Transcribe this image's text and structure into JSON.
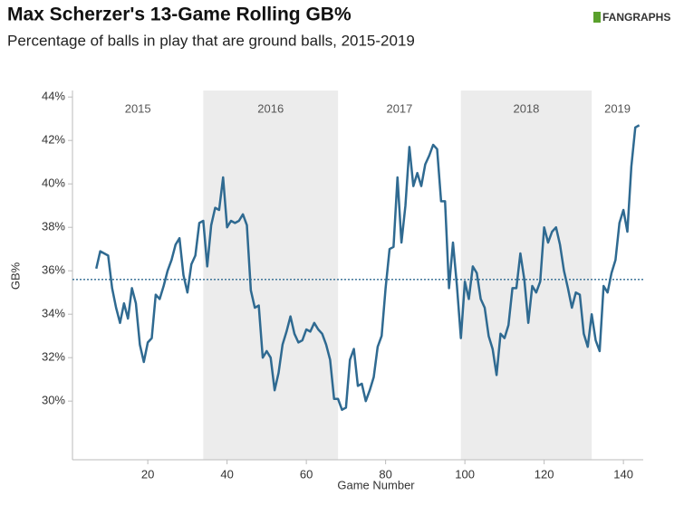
{
  "chart_data": {
    "type": "line",
    "title": "Max Scherzer's 13-Game Rolling GB%",
    "subtitle": "Percentage of balls in play that are ground balls, 2015-2019",
    "logo": "FANGRAPHS",
    "x_label": "Game Number",
    "y_label": "GB%",
    "x": [
      7,
      8,
      9,
      10,
      11,
      12,
      13,
      14,
      15,
      16,
      17,
      18,
      19,
      20,
      21,
      22,
      23,
      24,
      25,
      26,
      27,
      28,
      29,
      30,
      31,
      32,
      33,
      34,
      35,
      36,
      37,
      38,
      39,
      40,
      41,
      42,
      43,
      44,
      45,
      46,
      47,
      48,
      49,
      50,
      51,
      52,
      53,
      54,
      55,
      56,
      57,
      58,
      59,
      60,
      61,
      62,
      63,
      64,
      65,
      66,
      67,
      68,
      69,
      70,
      71,
      72,
      73,
      74,
      75,
      76,
      77,
      78,
      79,
      80,
      81,
      82,
      83,
      84,
      85,
      86,
      87,
      88,
      89,
      90,
      91,
      92,
      93,
      94,
      95,
      96,
      97,
      98,
      99,
      100,
      101,
      102,
      103,
      104,
      105,
      106,
      107,
      108,
      109,
      110,
      111,
      112,
      113,
      114,
      115,
      116,
      117,
      118,
      119,
      120,
      121,
      122,
      123,
      124,
      125,
      126,
      127,
      128,
      129,
      130,
      131,
      132,
      133,
      134,
      135,
      136,
      137,
      138,
      139,
      140,
      141,
      142,
      143,
      144
    ],
    "series": [
      {
        "name": "GB%",
        "color": "#2f6a91",
        "values": [
          36.1,
          36.9,
          36.8,
          36.7,
          35.2,
          34.3,
          33.6,
          34.5,
          33.8,
          35.2,
          34.5,
          32.6,
          31.8,
          32.7,
          32.9,
          34.9,
          34.7,
          35.3,
          36.0,
          36.5,
          37.2,
          37.5,
          35.8,
          35.0,
          36.3,
          36.7,
          38.2,
          38.3,
          36.2,
          38.1,
          38.9,
          38.8,
          40.3,
          38.0,
          38.3,
          38.2,
          38.3,
          38.6,
          38.1,
          35.1,
          34.3,
          34.4,
          32.0,
          32.3,
          32.0,
          30.5,
          31.3,
          32.6,
          33.2,
          33.9,
          33.1,
          32.7,
          32.8,
          33.3,
          33.2,
          33.6,
          33.3,
          33.1,
          32.6,
          31.9,
          30.1,
          30.1,
          29.6,
          29.7,
          31.9,
          32.4,
          30.7,
          30.8,
          30.0,
          30.5,
          31.1,
          32.5,
          33.0,
          35.2,
          37.0,
          37.1,
          40.3,
          37.3,
          39.0,
          41.7,
          39.9,
          40.5,
          39.9,
          40.9,
          41.3,
          41.8,
          41.6,
          39.2,
          39.2,
          35.2,
          37.3,
          35.3,
          32.9,
          35.5,
          34.7,
          36.2,
          35.9,
          34.7,
          34.3,
          33.0,
          32.4,
          31.2,
          33.1,
          32.9,
          33.5,
          35.2,
          35.2,
          36.8,
          35.6,
          33.6,
          35.3,
          35.0,
          35.5,
          38.0,
          37.3,
          37.8,
          38.0,
          37.2,
          36.0,
          35.2,
          34.3,
          35.0,
          34.9,
          33.1,
          32.5,
          34.0,
          32.8,
          32.3,
          35.3,
          35.0,
          35.9,
          36.5,
          38.2,
          38.8,
          37.8,
          40.8,
          42.6,
          42.7
        ]
      }
    ],
    "average": 35.6,
    "seasons": [
      {
        "label": "2015",
        "range": [
          1,
          34
        ],
        "shaded": false
      },
      {
        "label": "2016",
        "range": [
          34,
          68
        ],
        "shaded": true
      },
      {
        "label": "2017",
        "range": [
          68,
          99
        ],
        "shaded": false
      },
      {
        "label": "2018",
        "range": [
          99,
          132
        ],
        "shaded": true
      },
      {
        "label": "2019",
        "range": [
          132,
          145
        ],
        "shaded": false
      }
    ],
    "xlim": [
      1,
      145
    ],
    "ylim": [
      27.3,
      44.3
    ],
    "xticks": [
      20,
      40,
      60,
      80,
      100,
      120,
      140
    ],
    "yticks": [
      {
        "value": 30,
        "label": "30%"
      },
      {
        "value": 32,
        "label": "32%"
      },
      {
        "value": 34,
        "label": "34%"
      },
      {
        "value": 36,
        "label": "36%"
      },
      {
        "value": 38,
        "label": "38%"
      },
      {
        "value": 40,
        "label": "40%"
      },
      {
        "value": 42,
        "label": "42%"
      },
      {
        "value": 44,
        "label": "44%"
      }
    ],
    "grid": false
  }
}
